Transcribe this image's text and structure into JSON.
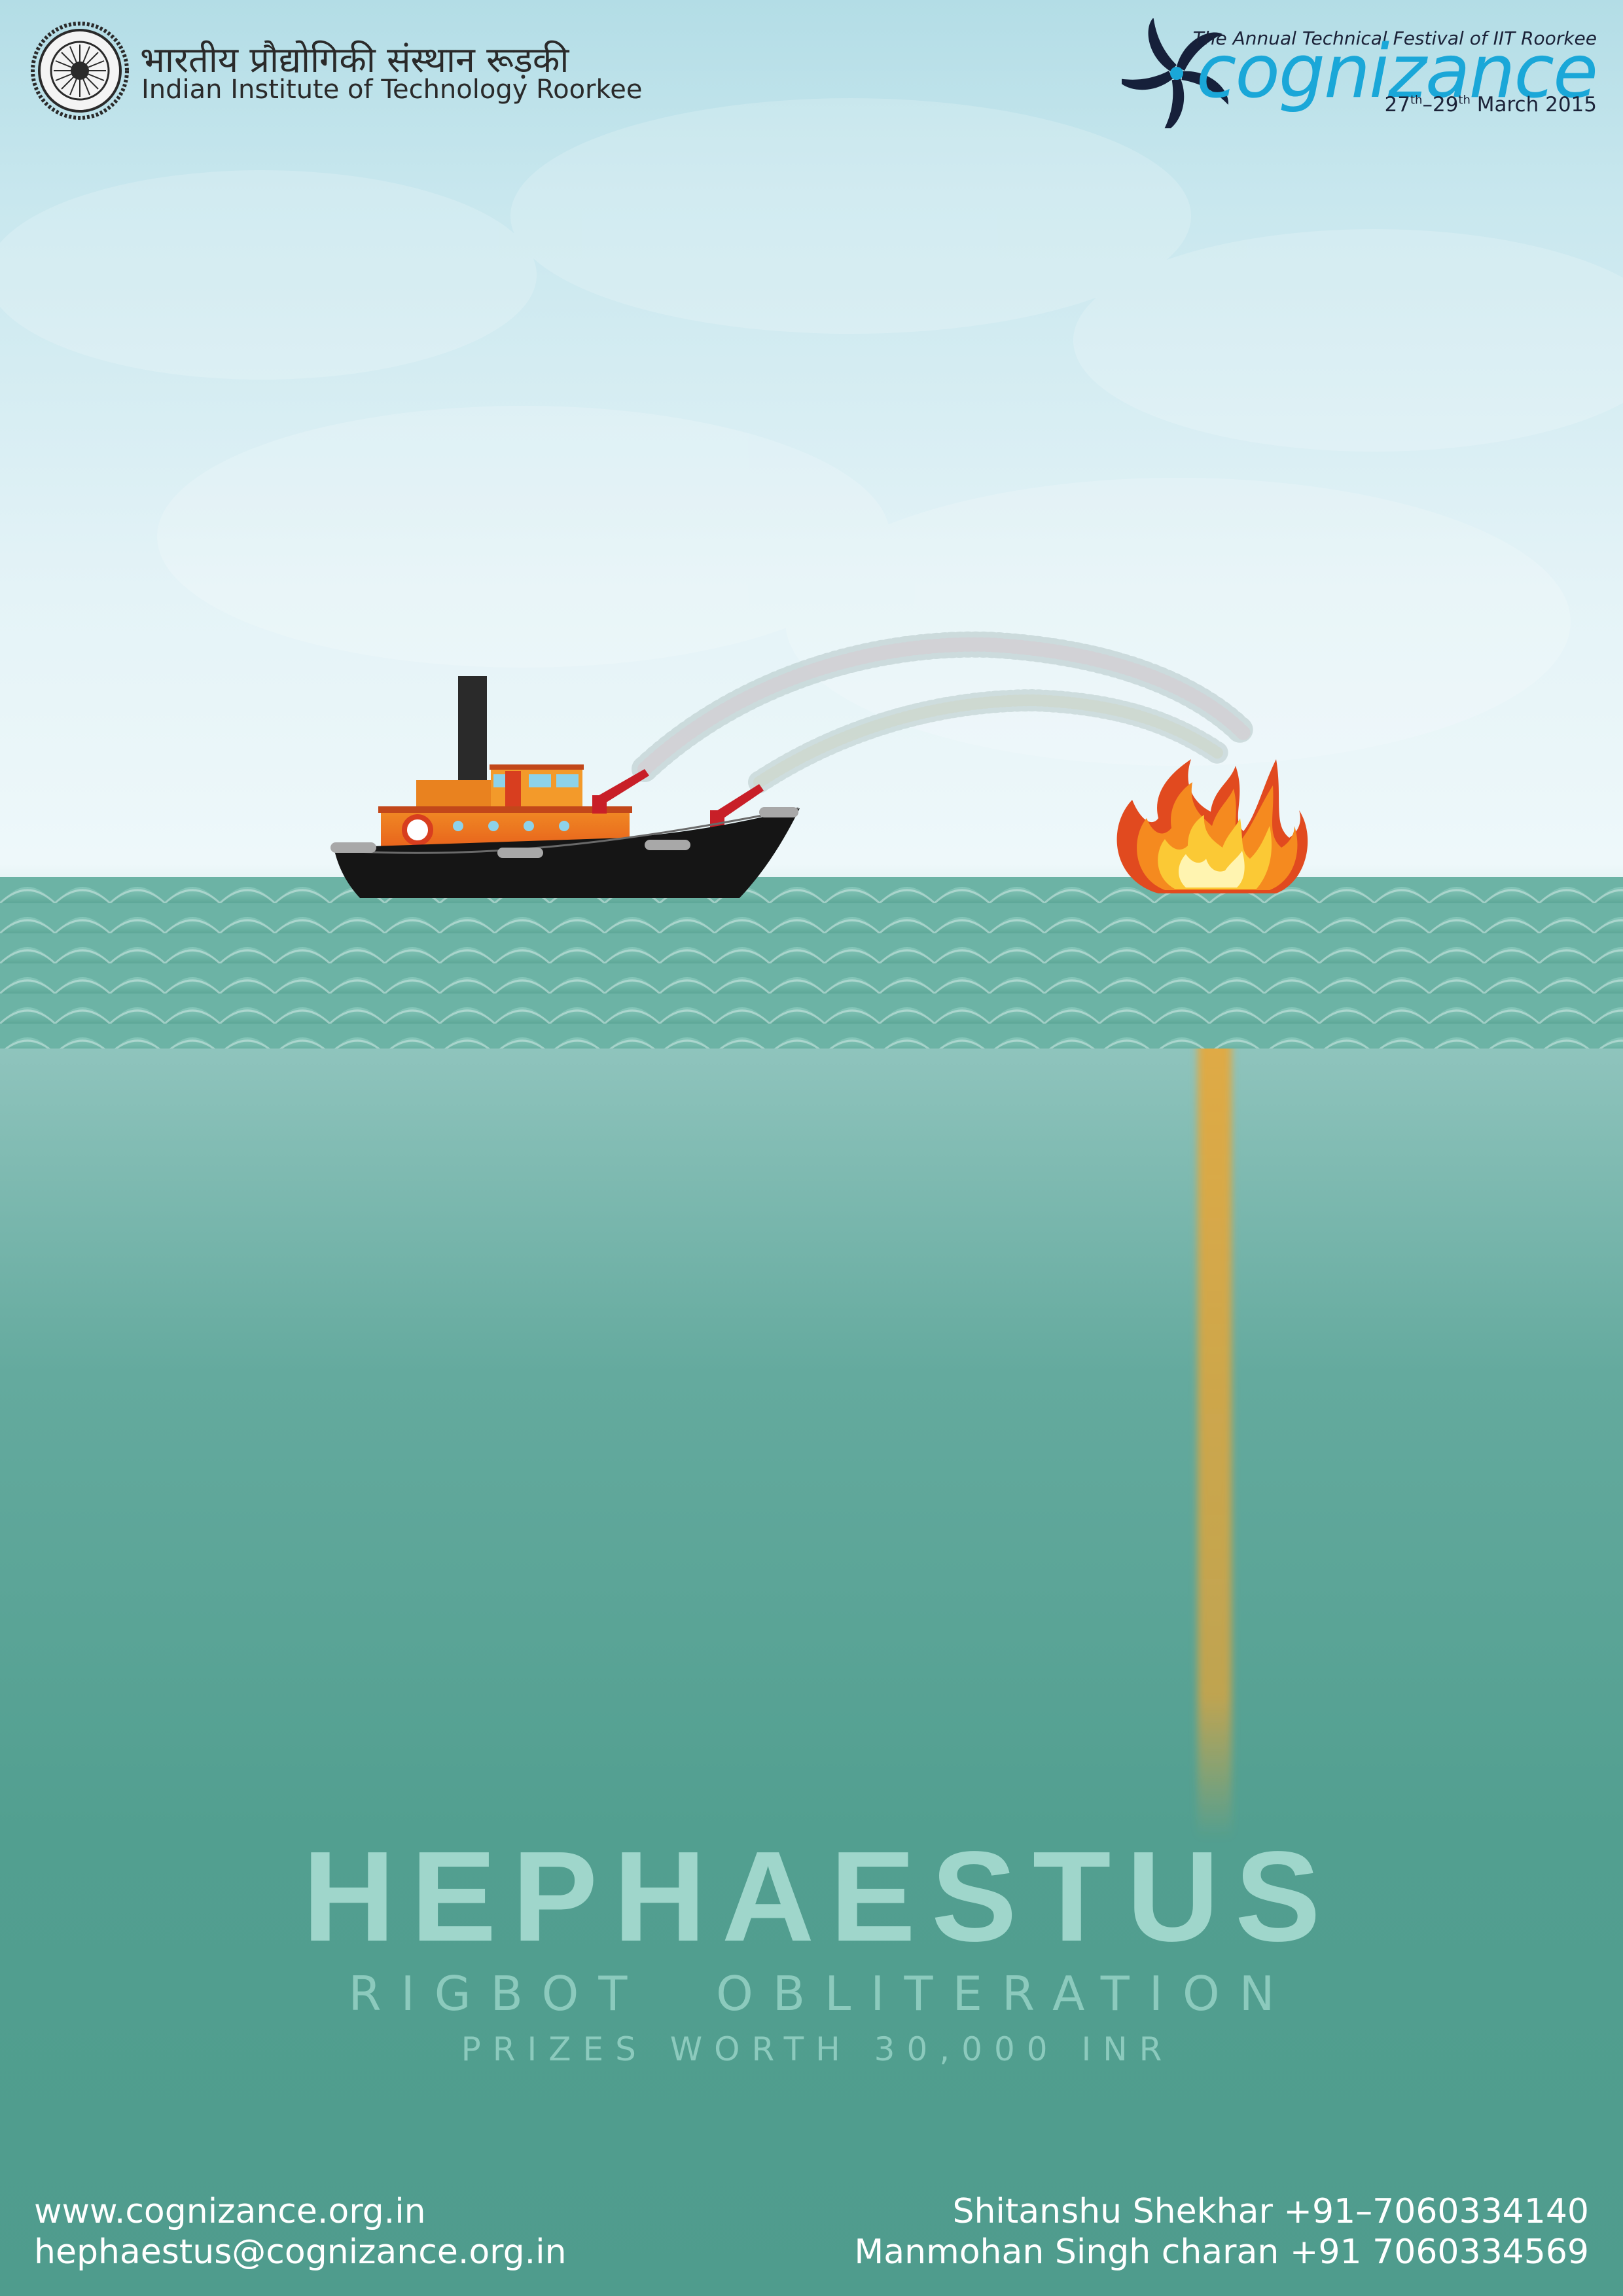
{
  "header": {
    "institute_hindi": "भारतीय प्रौद्योगिकी संस्थान रूड़की",
    "institute_english": "Indian Institute of Technology Roorkee",
    "festival_tagline": "The Annual Technical Festival of IIT Roorkee",
    "festival_name": "cognizance",
    "dates": {
      "start_day": "27",
      "start_suffix": "th",
      "separator": "–",
      "end_day": "29",
      "end_suffix": "th",
      "month_year": " March 2015"
    }
  },
  "event": {
    "title": "HEPHAESTUS",
    "subtitle": "RIGBOT  OBLITERATION",
    "prizes": "PRIZES WORTH 30,000 INR"
  },
  "contacts": {
    "website": "www.cognizance.org.in",
    "email": "hephaestus@cognizance.org.in",
    "people": [
      {
        "line": "Shitanshu Shekhar +91–7060334140"
      },
      {
        "line": "Manmohan Singh charan +91 7060334569"
      }
    ]
  },
  "colors": {
    "brand_blue": "#1aa7d8",
    "title_mint": "#9fd6cb",
    "ship_hull": "#151515",
    "sea_teal": "#529f90"
  },
  "icons": [
    "iit-roorkee-seal-icon",
    "cognizance-pinwheel-icon",
    "ship-icon",
    "fire-icon"
  ]
}
